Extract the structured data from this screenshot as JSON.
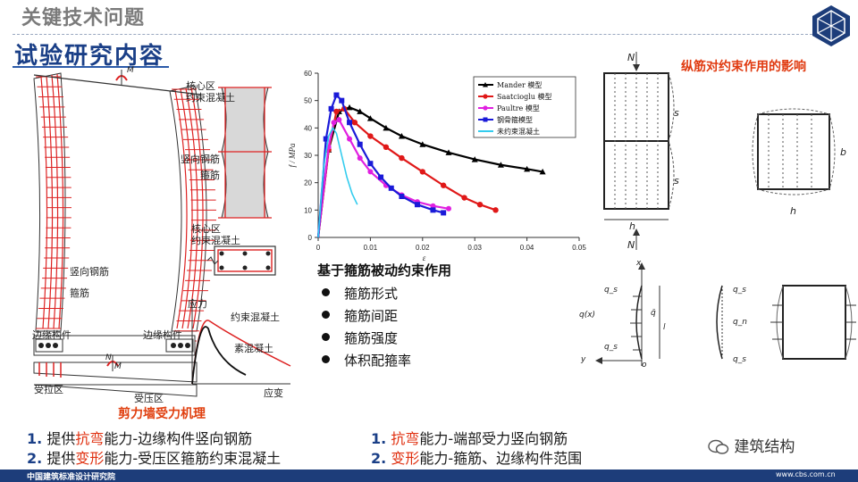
{
  "header": {
    "title": "关键技术问题",
    "section": "试验研究内容"
  },
  "wall_labels": {
    "core_confined_1": "核心区",
    "core_confined_1b": "约束混凝土",
    "vertical_rebar_1": "竖向钢筋",
    "stirrup_1": "箍筋",
    "core_confined_2": "核心区",
    "core_confined_2b": "约束混凝土",
    "vertical_rebar_2": "竖向钢筋",
    "stirrup_2": "箍筋",
    "edge_member_left": "边缘构件",
    "edge_member_right": "边缘构件",
    "tension_zone": "受拉区",
    "compression_zone": "受压区",
    "moment_symbol": "M",
    "axial_symbol": "N",
    "caption": "剪力墙受力机理"
  },
  "stress_strain_sketch": {
    "y_label": "应力",
    "x_label": "应变",
    "confined": "约束混凝土",
    "plain": "素混凝土"
  },
  "chart_data": {
    "type": "line",
    "ylabel": "f / MPa",
    "xlabel": "ε",
    "xlim": [
      0,
      0.05
    ],
    "ylim": [
      0,
      60
    ],
    "x_ticks": [
      "0",
      "0.01",
      "0.02",
      "0.03",
      "0.04",
      "0.05"
    ],
    "y_ticks": [
      "0",
      "10",
      "20",
      "30",
      "40",
      "50",
      "60"
    ],
    "legend_position": "top-right",
    "series": [
      {
        "name": "Mander 模型",
        "color": "#000000",
        "marker": "triangle",
        "x": [
          0,
          0.002,
          0.004,
          0.006,
          0.008,
          0.01,
          0.013,
          0.016,
          0.02,
          0.025,
          0.03,
          0.035,
          0.04,
          0.043
        ],
        "y": [
          0,
          32,
          46,
          47.5,
          46,
          43.5,
          40,
          37,
          34,
          31,
          28.5,
          26.5,
          25,
          24
        ]
      },
      {
        "name": "Saatcioglu 模型",
        "color": "#e01818",
        "marker": "circle",
        "x": [
          0,
          0.002,
          0.0035,
          0.005,
          0.007,
          0.01,
          0.013,
          0.016,
          0.02,
          0.024,
          0.028,
          0.031,
          0.034
        ],
        "y": [
          0,
          32,
          46,
          47,
          42,
          37,
          33,
          29,
          24,
          19,
          14.5,
          12,
          10
        ]
      },
      {
        "name": "Paultre 模型",
        "color": "#e020e0",
        "marker": "star",
        "x": [
          0,
          0.002,
          0.003,
          0.004,
          0.006,
          0.008,
          0.01,
          0.013,
          0.016,
          0.019,
          0.022,
          0.025
        ],
        "y": [
          0,
          33,
          42,
          43,
          36,
          29,
          24,
          19,
          15.5,
          13,
          11.5,
          10.5
        ]
      },
      {
        "name": "钢骨箍模型",
        "color": "#1a1ad8",
        "marker": "square",
        "x": [
          0,
          0.0015,
          0.0025,
          0.0035,
          0.0045,
          0.006,
          0.008,
          0.01,
          0.012,
          0.014,
          0.016,
          0.019,
          0.022,
          0.024
        ],
        "y": [
          0,
          36,
          47,
          52,
          50,
          42,
          34,
          27,
          22,
          18,
          15,
          12,
          10,
          9
        ]
      },
      {
        "name": "未约束混凝土",
        "color": "#33ccee",
        "marker": "none",
        "x": [
          0,
          0.001,
          0.002,
          0.0028,
          0.0035,
          0.0045,
          0.0055,
          0.0065,
          0.0075
        ],
        "y": [
          0,
          25,
          37,
          40,
          38,
          30,
          22,
          16,
          12
        ]
      }
    ]
  },
  "bullets": {
    "heading": "基于箍筋被动约束作用",
    "items": [
      "箍筋形式",
      "箍筋间距",
      "箍筋强度",
      "体积配箍率"
    ]
  },
  "right_panel": {
    "title": "纵筋对约束作用的影响",
    "symbols": {
      "N_top": "N",
      "N_bottom": "N",
      "s1": "s",
      "s2": "s",
      "b": "b",
      "h1": "h",
      "h2": "h",
      "x_axis": "x",
      "y_axis": "y",
      "qs_top": "q_s",
      "qx": "q(x)",
      "qbar": "q̄",
      "l": "l",
      "qs_bot": "q_s",
      "o": "o",
      "qs2": "q_s",
      "qn": "q_n",
      "qs3": "q_s"
    }
  },
  "summary": {
    "left": [
      {
        "num": "1.",
        "pre": "提供",
        "hl": "抗弯",
        "post": "能力-边缘构件竖向钢筋"
      },
      {
        "num": "2.",
        "pre": "提供",
        "hl": "变形",
        "post": "能力-受压区箍筋约束混凝土"
      }
    ],
    "right": [
      {
        "num": "1.",
        "pre": "",
        "hl": "抗弯",
        "post": "能力-端部受力竖向钢筋"
      },
      {
        "num": "2.",
        "pre": "",
        "hl": "变形",
        "post": "能力-箍筋、边缘构件范围"
      }
    ]
  },
  "watermark": "建筑结构",
  "footer": {
    "org": "中国建筑标准设计研究院",
    "url": "www.cbs.com.cn"
  }
}
